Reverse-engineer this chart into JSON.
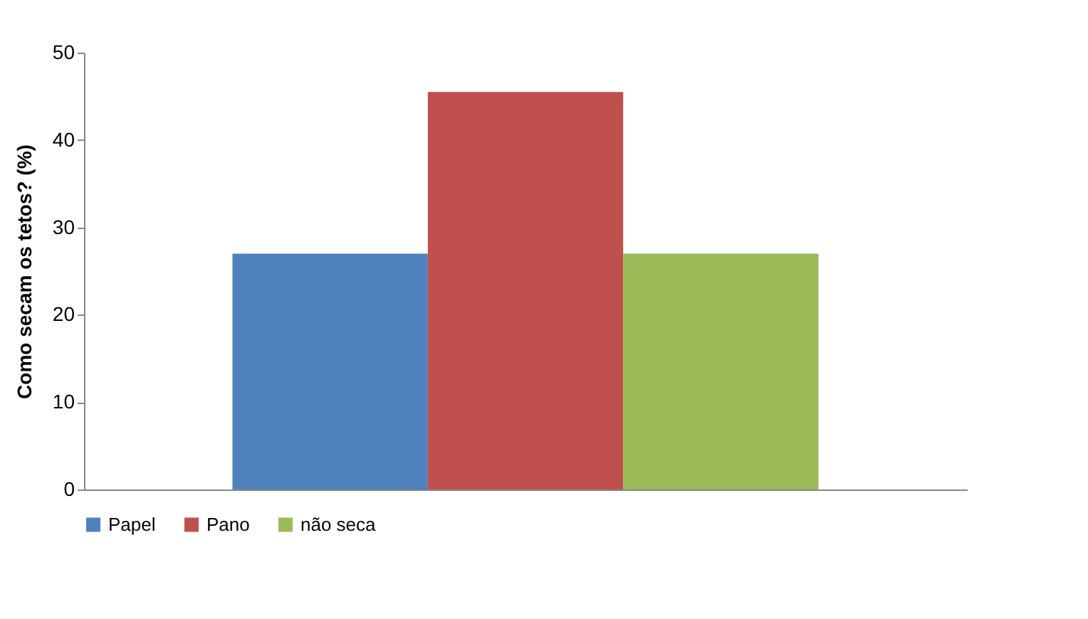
{
  "chart_data": {
    "type": "bar",
    "categories": [
      null
    ],
    "ylabel": "Como secam os tetos? (%)",
    "ylim": [
      0,
      50
    ],
    "yticks": [
      0,
      10,
      20,
      30,
      40,
      50
    ],
    "grid": false,
    "legend": "bottom",
    "series": [
      {
        "name": "Papel",
        "color": "#4f81bd",
        "values": [
          27
        ]
      },
      {
        "name": "Pano",
        "color": "#c0504d",
        "values": [
          45.5
        ]
      },
      {
        "name": "não seca",
        "color": "#9bbb59",
        "values": [
          27
        ]
      }
    ]
  }
}
